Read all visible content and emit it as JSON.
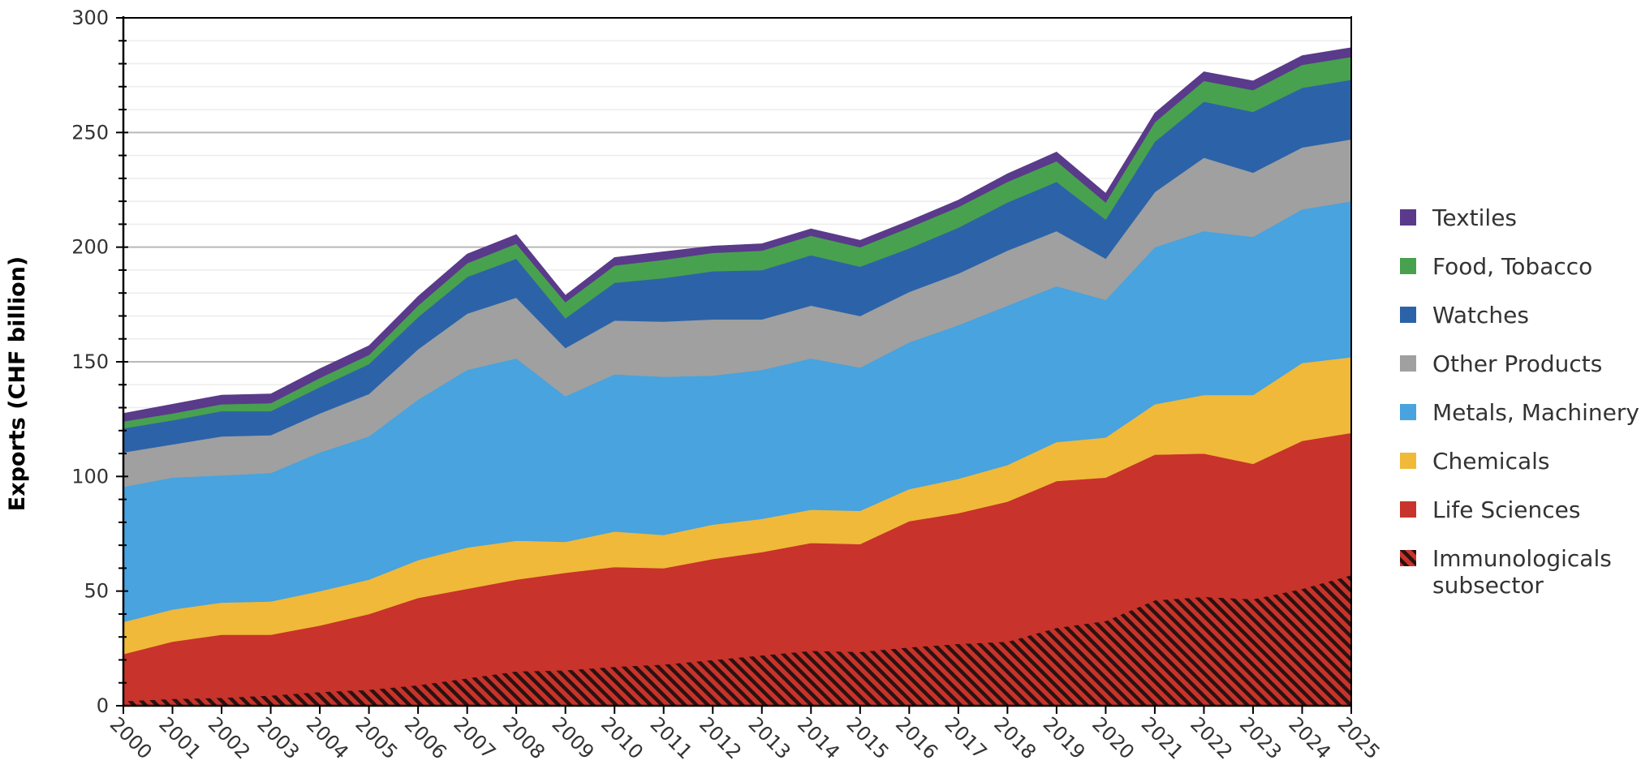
{
  "chart_data": {
    "type": "area",
    "stacked": true,
    "ylabel": "Exports (CHF billion)",
    "xlabel": "",
    "ylim": [
      0,
      300
    ],
    "yticks": [
      0,
      50,
      100,
      150,
      200,
      250,
      300
    ],
    "x": [
      "2000",
      "2001",
      "2002",
      "2003",
      "2004",
      "2005",
      "2006",
      "2007",
      "2008",
      "2009",
      "2010",
      "2011",
      "2012",
      "2013",
      "2014",
      "2015",
      "2016",
      "2017",
      "2018",
      "2019",
      "2020",
      "2021",
      "2022",
      "2023",
      "2024",
      "2025"
    ],
    "legend_position": "right",
    "series": [
      {
        "name": "Immunologicals subsector",
        "color": "#c8332b",
        "pattern": "hatch",
        "values": [
          2,
          3,
          3.5,
          4.5,
          6,
          7,
          9,
          12,
          15,
          15.5,
          17,
          18,
          20,
          22,
          24,
          23.5,
          25.5,
          27,
          28,
          34,
          37,
          46,
          47.5,
          46.5,
          51,
          57
        ]
      },
      {
        "name": "Life Sciences",
        "color": "#c8332b",
        "values": [
          20.5,
          25,
          27.5,
          26.5,
          29,
          33,
          38,
          39,
          40,
          42.5,
          43.5,
          42,
          44,
          45,
          47,
          47,
          55,
          57,
          61,
          64,
          62.5,
          63.5,
          62.5,
          59,
          64.5,
          62
        ]
      },
      {
        "name": "Chemicals",
        "color": "#f0b93a",
        "values": [
          14,
          14,
          14,
          14.5,
          15,
          15,
          16.5,
          18,
          17,
          13.5,
          15.5,
          14.5,
          15,
          14.5,
          14.5,
          14.5,
          14,
          15,
          16,
          17,
          17.5,
          22,
          25.5,
          30,
          34,
          33
        ]
      },
      {
        "name": "Metals, Machinery",
        "color": "#48a3de",
        "values": [
          59,
          57.5,
          55.5,
          56,
          60.5,
          62.5,
          70,
          77.5,
          79.5,
          63.5,
          68.5,
          69,
          65,
          65,
          66,
          62.5,
          64,
          67,
          69.5,
          68,
          60,
          68.5,
          71.5,
          69,
          67,
          68
        ]
      },
      {
        "name": "Other Products",
        "color": "#a0a0a0",
        "values": [
          15,
          14.5,
          17,
          16.5,
          17,
          18.5,
          22,
          24.5,
          26.5,
          21,
          23.5,
          24,
          24.5,
          22,
          23,
          22.5,
          22,
          22.5,
          24,
          24,
          18,
          24,
          32,
          28,
          27,
          27
        ]
      },
      {
        "name": "Watches",
        "color": "#2c63a8",
        "values": [
          10.5,
          10.5,
          11,
          10.5,
          11.5,
          13,
          14,
          16,
          17,
          13,
          16.5,
          19,
          21,
          21.5,
          22,
          21.5,
          19,
          20,
          21,
          21.5,
          17,
          22,
          24.5,
          26.5,
          26,
          26
        ]
      },
      {
        "name": "Food, Tobacco",
        "color": "#48a14f",
        "values": [
          3,
          3,
          3,
          3.5,
          4,
          4,
          5,
          6,
          6.5,
          7,
          7.5,
          8,
          8,
          8.5,
          8.5,
          8.5,
          9,
          9,
          9,
          9,
          7.5,
          8.5,
          9,
          9.5,
          10,
          10
        ]
      },
      {
        "name": "Textiles",
        "color": "#5a3a8a",
        "values": [
          3.5,
          4,
          4,
          4,
          4,
          4,
          4,
          4,
          4,
          3,
          3.5,
          3.5,
          3,
          3,
          3,
          3,
          3,
          3,
          3.5,
          4,
          4,
          4,
          4,
          4,
          4,
          4
        ]
      }
    ]
  }
}
